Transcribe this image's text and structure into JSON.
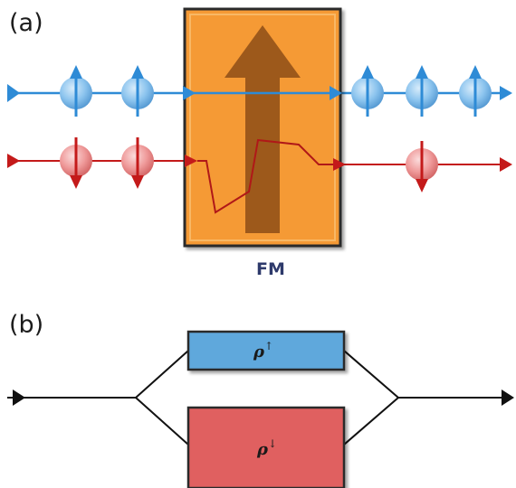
{
  "panel_a": {
    "label": "(a)",
    "ferromagnet_label": "FM",
    "spin_up_channel": {
      "color": "#2e8bd6",
      "spins_before": 2,
      "spins_after": 3
    },
    "spin_down_channel": {
      "color": "#c41a1a",
      "spins_before": 2,
      "spins_after": 1
    },
    "ferromagnet": {
      "fill": "#f59a36",
      "border": "#2a2a2a",
      "arrow_color": "#8a4a16"
    }
  },
  "panel_b": {
    "label": "(b)",
    "resistor_up": {
      "symbol": "ρ",
      "sup": "↑",
      "fill": "#5ea8dc"
    },
    "resistor_down": {
      "symbol": "ρ",
      "sup": "↓",
      "fill": "#e06161"
    }
  },
  "colors": {
    "up": "#2e8bd6",
    "down": "#c41a1a",
    "wire": "#111111"
  }
}
